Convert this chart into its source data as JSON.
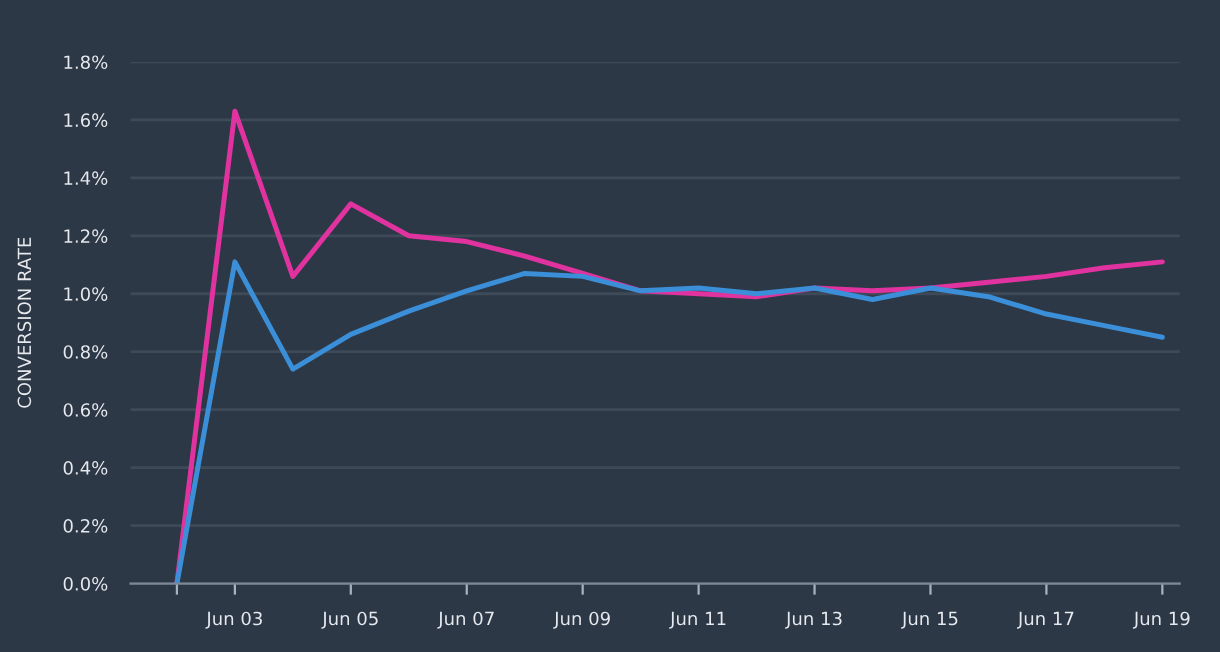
{
  "chart_data": {
    "type": "line",
    "ylabel": "CONVERSION RATE",
    "categories": [
      null,
      "Jun 03",
      null,
      "Jun 05",
      null,
      "Jun 07",
      null,
      "Jun 09",
      null,
      "Jun 11",
      null,
      "Jun 13",
      null,
      "Jun 15",
      null,
      "Jun 17",
      null,
      "Jun 19"
    ],
    "series": [
      {
        "color": "#e0339f",
        "values": [
          0,
          1.63,
          1.06,
          1.31,
          1.2,
          1.18,
          1.13,
          1.07,
          1.01,
          1.0,
          0.99,
          1.02,
          1.01,
          1.02,
          1.04,
          1.06,
          1.09,
          1.11
        ]
      },
      {
        "color": "#3a8fd8",
        "values": [
          0,
          1.11,
          0.74,
          0.86,
          0.94,
          1.01,
          1.07,
          1.06,
          1.01,
          1.02,
          1.0,
          1.02,
          0.98,
          1.02,
          0.99,
          0.93,
          0.89,
          0.85
        ]
      }
    ],
    "ylim": [
      0,
      1.8
    ],
    "yticks": [
      {
        "value": 0,
        "label": "0.0%"
      },
      {
        "value": 0.2,
        "label": "0.2%"
      },
      {
        "value": 0.4,
        "label": "0.4%"
      },
      {
        "value": 0.6,
        "label": "0.6%"
      },
      {
        "value": 0.8,
        "label": "0.8%"
      },
      {
        "value": 1.0,
        "label": "1.0%"
      },
      {
        "value": 1.2,
        "label": "1.2%"
      },
      {
        "value": 1.4,
        "label": "1.4%"
      },
      {
        "value": 1.6,
        "label": "1.6%"
      },
      {
        "value": 1.8,
        "label": "1.8%"
      }
    ],
    "grid": "y",
    "line_style": "solid",
    "marker": "none"
  }
}
